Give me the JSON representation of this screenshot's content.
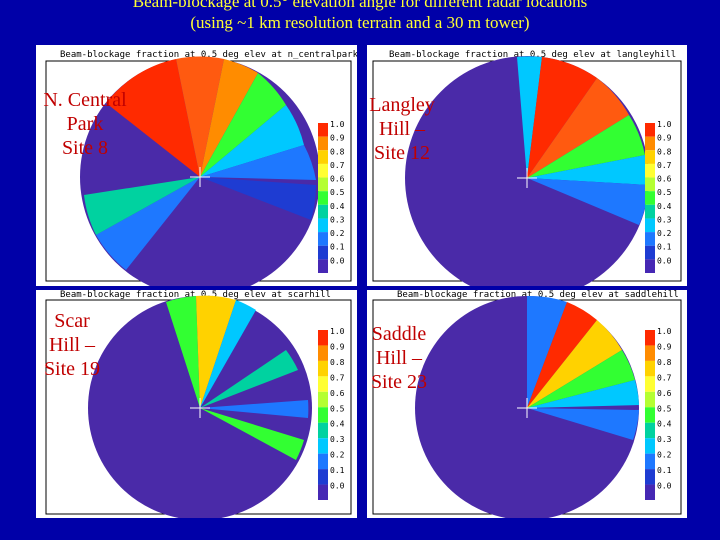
{
  "title": {
    "line1": "Beam-blockage at 0.5° elevation angle for different radar locations",
    "line2": "(using ~1 km resolution terrain and a 30 m tower)"
  },
  "colorbar": {
    "ticks": [
      "1.0",
      "0.9",
      "0.8",
      "0.7",
      "0.6",
      "0.5",
      "0.4",
      "0.3",
      "0.2",
      "0.1",
      "0.0"
    ],
    "colors": [
      "#ff2a00",
      "#ff8c00",
      "#ffd200",
      "#ffff33",
      "#b4ff32",
      "#32ff32",
      "#00d2a0",
      "#00c8ff",
      "#1e78ff",
      "#1e3cd2",
      "#4628b4"
    ]
  },
  "panels": [
    {
      "id": "central-park",
      "site_label": "N. Central\nPark\nSite 8",
      "header": "Beam-blockage fraction at 0.5 deg elev at n_centralpark"
    },
    {
      "id": "langley-hill",
      "site_label": "Langley\nHill –\nSite 12",
      "header": "Beam-blockage fraction at 0.5 deg elev at langleyhill"
    },
    {
      "id": "scar-hill",
      "site_label": "Scar\nHill –\nSite 19",
      "header": "Beam-blockage fraction at 0.5 deg elev at scarhill"
    },
    {
      "id": "saddle-hill",
      "site_label": "Saddle\nHill –\nSite 23",
      "header": "Beam-blockage fraction at 0.5 deg elev at saddlehill"
    }
  ]
}
